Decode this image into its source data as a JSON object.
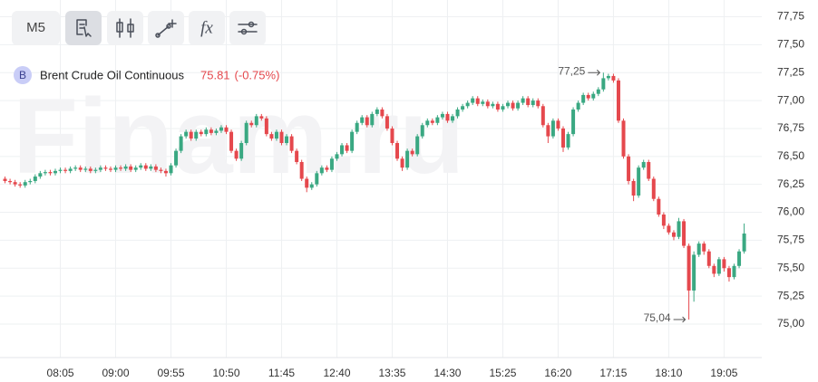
{
  "toolbar": {
    "timeframe": "M5",
    "formula": "fx"
  },
  "chart_data": {
    "type": "candlestick",
    "watermark": "Finam.ru",
    "legend": {
      "badge": "B",
      "name": "Brent Crude Oil Continuous",
      "last": 75.81,
      "change": "(-0.75%)"
    },
    "up_color": "#3aa882",
    "down_color": "#e5484d",
    "grid": true,
    "xlim": [
      -1,
      150.5
    ],
    "xticks": [
      {
        "value": 11,
        "label": "08:05"
      },
      {
        "value": 22,
        "label": "09:00"
      },
      {
        "value": 33,
        "label": "09:55"
      },
      {
        "value": 44,
        "label": "10:50"
      },
      {
        "value": 55,
        "label": "11:45"
      },
      {
        "value": 66,
        "label": "12:40"
      },
      {
        "value": 77,
        "label": "13:35"
      },
      {
        "value": 88,
        "label": "14:30"
      },
      {
        "value": 99,
        "label": "15:25"
      },
      {
        "value": 110,
        "label": "16:20"
      },
      {
        "value": 121,
        "label": "17:15"
      },
      {
        "value": 132,
        "label": "18:10"
      },
      {
        "value": 143,
        "label": "19:05"
      }
    ],
    "ylim": [
      74.7,
      77.9
    ],
    "yticks": [
      {
        "value": 75,
        "label": "75,00"
      },
      {
        "value": 75.25,
        "label": "75,25"
      },
      {
        "value": 75.5,
        "label": "75,50"
      },
      {
        "value": 75.75,
        "label": "75,75"
      },
      {
        "value": 76,
        "label": "76,00"
      },
      {
        "value": 76.25,
        "label": "76,25"
      },
      {
        "value": 76.5,
        "label": "76,50"
      },
      {
        "value": 76.75,
        "label": "76,75"
      },
      {
        "value": 77,
        "label": "77,00"
      },
      {
        "value": 77.25,
        "label": "77,25"
      },
      {
        "value": 77.5,
        "label": "77,50"
      },
      {
        "value": 77.75,
        "label": "77,75"
      }
    ],
    "annotations": [
      {
        "x": 119,
        "value": 77.25,
        "label": "77,25"
      },
      {
        "x": 136,
        "value": 75.04,
        "label": "75,04"
      }
    ],
    "ohlc": [
      [
        76.3,
        76.32,
        76.26,
        76.28
      ],
      [
        76.28,
        76.3,
        76.25,
        76.27
      ],
      [
        76.27,
        76.29,
        76.23,
        76.25
      ],
      [
        76.25,
        76.27,
        76.22,
        76.24
      ],
      [
        76.24,
        76.29,
        76.22,
        76.27
      ],
      [
        76.27,
        76.3,
        76.25,
        76.28
      ],
      [
        76.28,
        76.34,
        76.26,
        76.32
      ],
      [
        76.32,
        76.37,
        76.3,
        76.35
      ],
      [
        76.35,
        76.38,
        76.33,
        76.36
      ],
      [
        76.36,
        76.38,
        76.33,
        76.35
      ],
      [
        76.35,
        76.39,
        76.33,
        76.37
      ],
      [
        76.37,
        76.4,
        76.35,
        76.38
      ],
      [
        76.38,
        76.4,
        76.35,
        76.37
      ],
      [
        76.37,
        76.41,
        76.35,
        76.39
      ],
      [
        76.39,
        76.42,
        76.37,
        76.4
      ],
      [
        76.4,
        76.42,
        76.36,
        76.38
      ],
      [
        76.38,
        76.41,
        76.36,
        76.39
      ],
      [
        76.39,
        76.41,
        76.35,
        76.37
      ],
      [
        76.37,
        76.4,
        76.35,
        76.38
      ],
      [
        76.38,
        76.42,
        76.36,
        76.4
      ],
      [
        76.4,
        76.42,
        76.37,
        76.39
      ],
      [
        76.39,
        76.41,
        76.36,
        76.38
      ],
      [
        76.38,
        76.42,
        76.36,
        76.4
      ],
      [
        76.4,
        76.42,
        76.37,
        76.39
      ],
      [
        76.39,
        76.43,
        76.37,
        76.41
      ],
      [
        76.41,
        76.43,
        76.36,
        76.38
      ],
      [
        76.38,
        76.42,
        76.36,
        76.4
      ],
      [
        76.4,
        76.44,
        76.38,
        76.42
      ],
      [
        76.42,
        76.44,
        76.37,
        76.39
      ],
      [
        76.39,
        76.43,
        76.37,
        76.41
      ],
      [
        76.41,
        76.43,
        76.36,
        76.38
      ],
      [
        76.38,
        76.4,
        76.35,
        76.37
      ],
      [
        76.37,
        76.39,
        76.32,
        76.35
      ],
      [
        76.35,
        76.44,
        76.33,
        76.42
      ],
      [
        76.42,
        76.57,
        76.4,
        76.55
      ],
      [
        76.55,
        76.7,
        76.53,
        76.68
      ],
      [
        76.68,
        76.74,
        76.66,
        76.72
      ],
      [
        76.72,
        76.74,
        76.64,
        76.66
      ],
      [
        76.66,
        76.74,
        76.64,
        76.72
      ],
      [
        76.72,
        76.74,
        76.68,
        76.7
      ],
      [
        76.7,
        76.76,
        76.68,
        76.74
      ],
      [
        76.74,
        76.76,
        76.69,
        76.71
      ],
      [
        76.71,
        76.75,
        76.69,
        76.73
      ],
      [
        76.73,
        76.78,
        76.71,
        76.76
      ],
      [
        76.76,
        76.78,
        76.7,
        76.72
      ],
      [
        76.72,
        76.74,
        76.53,
        76.55
      ],
      [
        76.55,
        76.57,
        76.46,
        76.48
      ],
      [
        76.48,
        76.64,
        76.46,
        76.62
      ],
      [
        76.62,
        76.82,
        76.6,
        76.8
      ],
      [
        76.8,
        76.82,
        76.76,
        76.78
      ],
      [
        76.78,
        76.88,
        76.76,
        76.86
      ],
      [
        76.86,
        76.88,
        76.82,
        76.84
      ],
      [
        76.84,
        76.86,
        76.68,
        76.7
      ],
      [
        76.7,
        76.72,
        76.64,
        76.66
      ],
      [
        76.66,
        76.74,
        76.64,
        76.72
      ],
      [
        76.72,
        76.74,
        76.6,
        76.62
      ],
      [
        76.62,
        76.7,
        76.6,
        76.68
      ],
      [
        76.68,
        76.7,
        76.53,
        76.55
      ],
      [
        76.55,
        76.57,
        76.43,
        76.45
      ],
      [
        76.45,
        76.47,
        76.28,
        76.3
      ],
      [
        76.3,
        76.32,
        76.18,
        76.22
      ],
      [
        76.22,
        76.27,
        76.2,
        76.25
      ],
      [
        76.25,
        76.37,
        76.23,
        76.35
      ],
      [
        76.35,
        76.42,
        76.33,
        76.4
      ],
      [
        76.4,
        76.42,
        76.36,
        76.38
      ],
      [
        76.38,
        76.5,
        76.36,
        76.48
      ],
      [
        76.48,
        76.54,
        76.46,
        76.52
      ],
      [
        76.52,
        76.62,
        76.5,
        76.6
      ],
      [
        76.6,
        76.62,
        76.53,
        76.55
      ],
      [
        76.55,
        76.74,
        76.53,
        76.72
      ],
      [
        76.72,
        76.82,
        76.7,
        76.8
      ],
      [
        76.8,
        76.87,
        76.78,
        76.85
      ],
      [
        76.85,
        76.87,
        76.76,
        76.78
      ],
      [
        76.78,
        76.9,
        76.76,
        76.88
      ],
      [
        76.88,
        76.94,
        76.86,
        76.92
      ],
      [
        76.92,
        76.94,
        76.84,
        76.86
      ],
      [
        76.86,
        76.88,
        76.73,
        76.75
      ],
      [
        76.75,
        76.77,
        76.6,
        76.62
      ],
      [
        76.62,
        76.64,
        76.46,
        76.48
      ],
      [
        76.48,
        76.5,
        76.37,
        76.4
      ],
      [
        76.4,
        76.57,
        76.38,
        76.55
      ],
      [
        76.55,
        76.57,
        76.5,
        76.52
      ],
      [
        76.52,
        76.7,
        76.5,
        76.68
      ],
      [
        76.68,
        76.8,
        76.66,
        76.78
      ],
      [
        76.78,
        76.84,
        76.76,
        76.82
      ],
      [
        76.82,
        76.84,
        76.78,
        76.8
      ],
      [
        76.8,
        76.87,
        76.78,
        76.85
      ],
      [
        76.85,
        76.9,
        76.83,
        76.88
      ],
      [
        76.88,
        76.9,
        76.8,
        76.82
      ],
      [
        76.82,
        76.88,
        76.8,
        76.86
      ],
      [
        76.86,
        76.94,
        76.84,
        76.92
      ],
      [
        76.92,
        76.97,
        76.9,
        76.95
      ],
      [
        76.95,
        77.0,
        76.93,
        76.98
      ],
      [
        76.98,
        77.04,
        76.96,
        77.02
      ],
      [
        77.02,
        77.04,
        76.95,
        76.97
      ],
      [
        76.97,
        77.01,
        76.95,
        76.99
      ],
      [
        76.99,
        77.01,
        76.93,
        76.95
      ],
      [
        76.95,
        76.99,
        76.93,
        76.97
      ],
      [
        76.97,
        76.99,
        76.9,
        76.92
      ],
      [
        76.92,
        76.97,
        76.9,
        76.95
      ],
      [
        76.95,
        77.0,
        76.93,
        76.98
      ],
      [
        76.98,
        77.0,
        76.91,
        76.93
      ],
      [
        76.93,
        77.0,
        76.91,
        76.98
      ],
      [
        76.98,
        77.04,
        76.96,
        77.02
      ],
      [
        77.02,
        77.04,
        76.94,
        76.96
      ],
      [
        76.96,
        77.02,
        76.94,
        77.0
      ],
      [
        77.0,
        77.02,
        76.93,
        76.95
      ],
      [
        76.95,
        76.97,
        76.76,
        76.78
      ],
      [
        76.78,
        76.8,
        76.62,
        76.68
      ],
      [
        76.68,
        76.84,
        76.66,
        76.82
      ],
      [
        76.82,
        76.84,
        76.73,
        76.75
      ],
      [
        76.75,
        76.77,
        76.54,
        76.58
      ],
      [
        76.58,
        76.72,
        76.56,
        76.7
      ],
      [
        76.7,
        76.94,
        76.68,
        76.92
      ],
      [
        76.92,
        77.0,
        76.9,
        76.98
      ],
      [
        76.98,
        77.07,
        76.96,
        77.05
      ],
      [
        77.05,
        77.07,
        77.0,
        77.02
      ],
      [
        77.02,
        77.08,
        77.0,
        77.06
      ],
      [
        77.06,
        77.12,
        77.04,
        77.1
      ],
      [
        77.1,
        77.25,
        77.08,
        77.2
      ],
      [
        77.2,
        77.24,
        77.18,
        77.22
      ],
      [
        77.22,
        77.24,
        77.16,
        77.18
      ],
      [
        77.18,
        77.2,
        76.8,
        76.82
      ],
      [
        76.82,
        76.84,
        76.48,
        76.5
      ],
      [
        76.5,
        76.52,
        76.25,
        76.28
      ],
      [
        76.28,
        76.3,
        76.1,
        76.15
      ],
      [
        76.15,
        76.42,
        76.13,
        76.4
      ],
      [
        76.4,
        76.47,
        76.38,
        76.45
      ],
      [
        76.45,
        76.47,
        76.28,
        76.3
      ],
      [
        76.3,
        76.32,
        76.1,
        76.12
      ],
      [
        76.12,
        76.14,
        75.96,
        75.98
      ],
      [
        75.98,
        76.0,
        75.85,
        75.88
      ],
      [
        75.88,
        75.9,
        75.8,
        75.82
      ],
      [
        75.82,
        75.84,
        75.75,
        75.78
      ],
      [
        75.78,
        75.95,
        75.76,
        75.92
      ],
      [
        75.92,
        75.94,
        75.68,
        75.7
      ],
      [
        75.7,
        75.72,
        75.04,
        75.3
      ],
      [
        75.3,
        75.65,
        75.2,
        75.62
      ],
      [
        75.62,
        75.74,
        75.6,
        75.72
      ],
      [
        75.72,
        75.74,
        75.62,
        75.65
      ],
      [
        75.65,
        75.67,
        75.5,
        75.52
      ],
      [
        75.52,
        75.54,
        75.42,
        75.45
      ],
      [
        75.45,
        75.6,
        75.43,
        75.58
      ],
      [
        75.58,
        75.6,
        75.47,
        75.5
      ],
      [
        75.5,
        75.52,
        75.38,
        75.42
      ],
      [
        75.42,
        75.54,
        75.4,
        75.52
      ],
      [
        75.52,
        75.67,
        75.5,
        75.65
      ],
      [
        75.65,
        75.9,
        75.63,
        75.81
      ]
    ]
  }
}
